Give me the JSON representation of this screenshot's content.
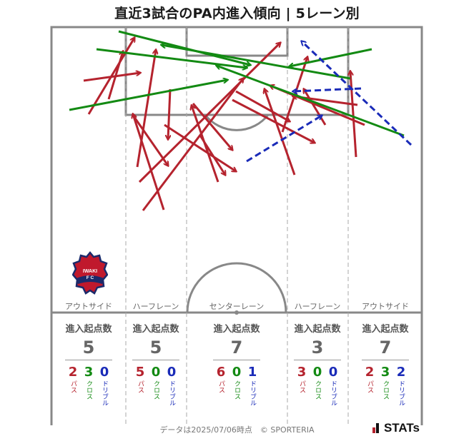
{
  "title": "直近3試合のPA内進入傾向 | 5レーン別",
  "colors": {
    "pass": "#b5232e",
    "cross": "#138a13",
    "dribble": "#1a2bb8",
    "pitch_line": "#888888",
    "lane_line": "#aaaaaa"
  },
  "lanes": [
    {
      "name": "アウトサイド",
      "heading": "進入起点数",
      "total": "5",
      "pass": "2",
      "cross": "3",
      "dribble": "0"
    },
    {
      "name": "ハーフレーン",
      "heading": "進入起点数",
      "total": "5",
      "pass": "5",
      "cross": "0",
      "dribble": "0"
    },
    {
      "name": "センターレーン",
      "heading": "進入起点数",
      "total": "7",
      "pass": "6",
      "cross": "0",
      "dribble": "1"
    },
    {
      "name": "ハーフレーン",
      "heading": "進入起点数",
      "total": "3",
      "pass": "3",
      "cross": "0",
      "dribble": "0"
    },
    {
      "name": "アウトサイド",
      "heading": "進入起点数",
      "total": "7",
      "pass": "2",
      "cross": "3",
      "dribble": "2"
    }
  ],
  "legend": {
    "pass": "パス",
    "cross": "クロス",
    "dribble": "ドリブル"
  },
  "team_logo": {
    "text": "IWAKI FC"
  },
  "footer": "データは2025/07/06時点　© SPORTERIA",
  "brand": "STATs"
}
